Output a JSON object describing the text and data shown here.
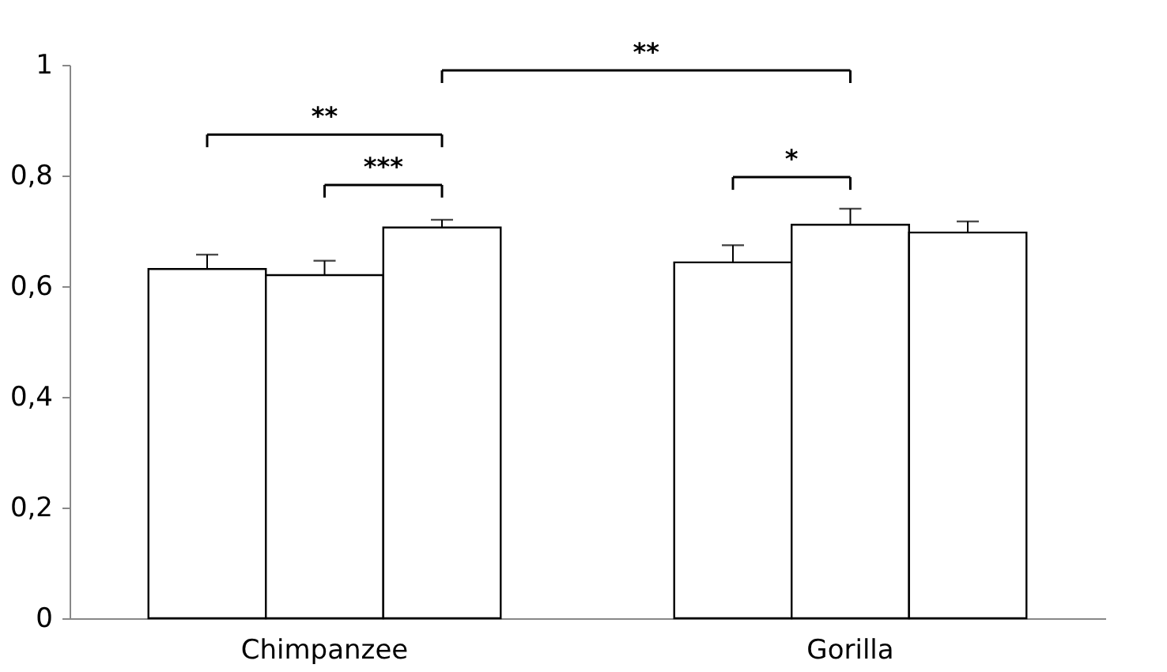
{
  "chart_data": {
    "type": "bar",
    "categories": [
      "Chimpanzee",
      "Gorilla"
    ],
    "series": [
      {
        "color": "#ffffff",
        "values": [
          0.631,
          0.643
        ],
        "errors": [
          0.026,
          0.031
        ]
      },
      {
        "color": "#ffffff",
        "values": [
          0.62,
          0.711
        ],
        "errors": [
          0.026,
          0.029
        ]
      },
      {
        "color": "#ffffff",
        "values": [
          0.706,
          0.697
        ],
        "errors": [
          0.014,
          0.02
        ]
      }
    ],
    "ylim": [
      0,
      1
    ],
    "yticks": [
      0,
      {
        "value": 0.2,
        "label": "0,2"
      },
      {
        "value": 0.4,
        "label": "0,4"
      },
      {
        "value": 0.6,
        "label": "0,6"
      },
      {
        "value": 0.8,
        "label": "0,8"
      },
      1
    ],
    "annotations": [
      "**",
      "***",
      "*",
      "**"
    ],
    "grid": false
  }
}
